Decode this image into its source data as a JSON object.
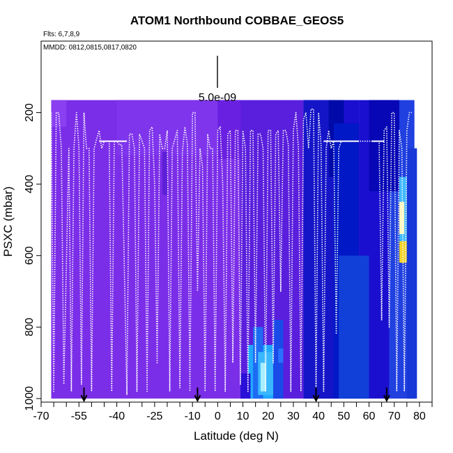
{
  "chart_data": {
    "type": "heatmap",
    "title": "ATOM1 Northbound COBBAE_GEOS5",
    "subtitle_flights": "Flts: 6,7,8,9",
    "subtitle_dates": "MMDD: 0812,0815,0817,0820",
    "xlabel": "Latitude (deg N)",
    "ylabel": "PSXC (mbar)",
    "xlim": [
      -70,
      85
    ],
    "ylim": [
      1010,
      0
    ],
    "x_ticks": [
      -70,
      -55,
      -40,
      -25,
      -10,
      0,
      10,
      20,
      30,
      40,
      50,
      60,
      70,
      80
    ],
    "x_tick_labels": [
      "-70",
      "-55",
      "-40",
      "-25",
      "-10",
      "0",
      "10",
      "20",
      "30",
      "40",
      "50",
      "60",
      "70",
      "80"
    ],
    "x_minor_ticks": [
      -65,
      -60,
      -50,
      -45,
      -35,
      -30,
      -20,
      -15,
      -5,
      5,
      15,
      25,
      35,
      45,
      55,
      65,
      75,
      85
    ],
    "y_ticks": [
      200,
      400,
      600,
      800,
      1000
    ],
    "y_tick_labels": [
      "200",
      "400",
      "600",
      "800",
      "1000"
    ],
    "scale_bar_label": "5.0e-09",
    "colors": {
      "background": "#8a2be2",
      "low": "#7b2ee8",
      "mid": "#1010cc",
      "high": "#00a0ff",
      "peak": "#f5d020",
      "flight_track": "#ffffff"
    },
    "field_regions": [
      {
        "lat": [
          -66,
          9
        ],
        "p": [
          165,
          1000
        ],
        "level": "low"
      },
      {
        "lat": [
          9,
          34
        ],
        "p": [
          165,
          1000
        ],
        "level": "low-mid"
      },
      {
        "lat": [
          34,
          56
        ],
        "p": [
          165,
          1000
        ],
        "level": "mid"
      },
      {
        "lat": [
          56,
          68
        ],
        "p": [
          165,
          1000
        ],
        "level": "mid"
      },
      {
        "lat": [
          68,
          78
        ],
        "p": [
          165,
          1000
        ],
        "level": "mid-high"
      },
      {
        "lat": [
          12,
          22
        ],
        "p": [
          850,
          1000
        ],
        "level": "high"
      },
      {
        "lat": [
          72,
          75
        ],
        "p": [
          420,
          620
        ],
        "level": "peak"
      }
    ],
    "marker_latitudes": [
      -53,
      -8,
      39,
      67
    ],
    "flight_track": {
      "lat": [
        -66,
        -65,
        -64,
        -63,
        -62,
        -61,
        -59,
        -58,
        -57,
        -56,
        -55,
        -54,
        -53,
        -52,
        -51,
        -50,
        -49,
        -47,
        -46,
        -45,
        -44,
        -43,
        -42,
        -41,
        -40,
        -39,
        -38,
        -36,
        -35,
        -34,
        -33,
        -32,
        -31,
        -30,
        -29,
        -28,
        -27,
        -26,
        -25,
        -24,
        -23,
        -22,
        -21,
        -20,
        -19,
        -18,
        -16,
        -15,
        -14,
        -13,
        -12,
        -11,
        -10,
        -9,
        -8,
        -7,
        -6,
        -5,
        -4,
        -3,
        -2,
        -1,
        0,
        1,
        2,
        3,
        4,
        5,
        6,
        7,
        8,
        9,
        10,
        11,
        12,
        13,
        14,
        15,
        16,
        17,
        18,
        19,
        20,
        21,
        22,
        23,
        24,
        25,
        26,
        27,
        28,
        29,
        30,
        31,
        32,
        33,
        34,
        35,
        36,
        37,
        38,
        39,
        40,
        41,
        42,
        43,
        44,
        45,
        46,
        47,
        48,
        49,
        50,
        51,
        52,
        53,
        54,
        55,
        56,
        57,
        58,
        59,
        60,
        61,
        62,
        63,
        64,
        65,
        66,
        67,
        68,
        69,
        70,
        71,
        72,
        73,
        74,
        75,
        76,
        77
      ],
      "p": [
        200,
        980,
        200,
        200,
        300,
        960,
        300,
        980,
        300,
        200,
        300,
        960,
        200,
        300,
        300,
        980,
        300,
        250,
        300,
        280,
        280,
        280,
        980,
        280,
        280,
        290,
        290,
        990,
        260,
        260,
        300,
        980,
        260,
        280,
        300,
        980,
        250,
        240,
        400,
        900,
        260,
        300,
        300,
        250,
        980,
        300,
        250,
        970,
        310,
        240,
        290,
        980,
        200,
        200,
        700,
        300,
        350,
        980,
        260,
        300,
        300,
        980,
        250,
        240,
        400,
        980,
        260,
        250,
        900,
        250,
        250,
        960,
        250,
        300,
        980,
        250,
        250,
        900,
        260,
        260,
        300,
        980,
        250,
        250,
        900,
        260,
        250,
        700,
        250,
        250,
        290,
        980,
        250,
        200,
        300,
        980,
        220,
        200,
        300,
        190,
        190,
        980,
        200,
        290,
        980,
        300,
        250,
        300,
        280,
        820,
        300,
        280,
        280,
        280,
        280,
        280,
        280,
        280,
        280,
        280,
        280,
        280,
        280,
        280,
        280,
        280,
        280,
        780,
        250,
        240,
        800,
        200,
        200,
        980,
        250,
        300,
        980,
        250,
        200,
        200
      ]
    }
  }
}
